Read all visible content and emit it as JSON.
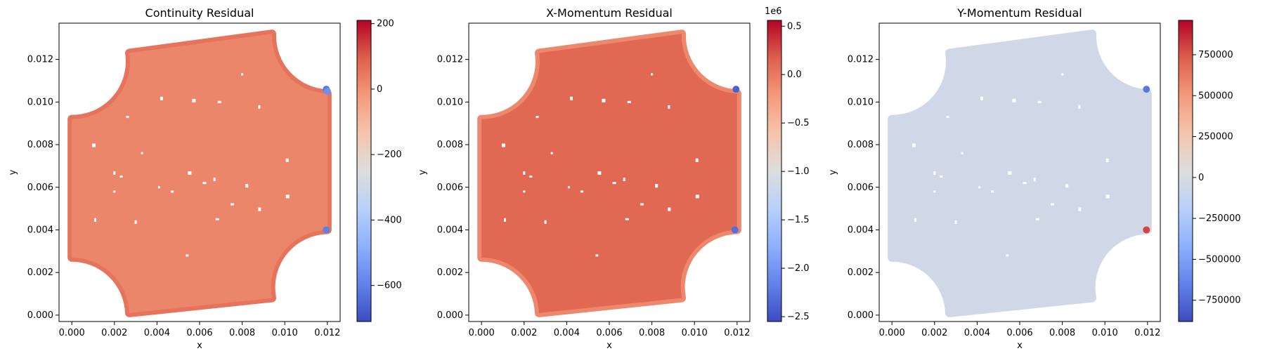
{
  "chart_data": [
    {
      "type": "heatmap",
      "title": "Continuity Residual",
      "xlabel": "x",
      "ylabel": "y",
      "xlim": [
        -0.0006,
        0.0126
      ],
      "ylim": [
        -0.0003,
        0.0137
      ],
      "xticks": [
        0.0,
        0.002,
        0.004,
        0.006,
        0.008,
        0.01,
        0.012
      ],
      "xtick_labels": [
        "0.000",
        "0.002",
        "0.004",
        "0.006",
        "0.008",
        "0.010",
        "0.012"
      ],
      "yticks": [
        0.0,
        0.002,
        0.004,
        0.006,
        0.008,
        0.01,
        0.012
      ],
      "ytick_labels": [
        "0.000",
        "0.002",
        "0.004",
        "0.006",
        "0.008",
        "0.010",
        "0.012"
      ],
      "colormap": "coolwarm",
      "color_range": [
        -710,
        210
      ],
      "colorbar_ticks": [
        200,
        0,
        -200,
        -400,
        -600
      ],
      "colorbar_tick_labels": [
        "200",
        "0",
        "−200",
        "−400",
        "−600"
      ],
      "colorbar_offset_label": "",
      "field_value": 20,
      "edge_value": 55,
      "hotspots": [
        {
          "x": 0.01195,
          "y": 0.0106,
          "value": -620
        },
        {
          "x": 0.012,
          "y": 0.0105,
          "value": -560
        },
        {
          "x": 0.01195,
          "y": 0.004,
          "value": -600
        }
      ]
    },
    {
      "type": "heatmap",
      "title": "X-Momentum Residual",
      "xlabel": "x",
      "ylabel": "y",
      "xlim": [
        -0.0006,
        0.0126
      ],
      "ylim": [
        -0.0003,
        0.0137
      ],
      "xticks": [
        0.0,
        0.002,
        0.004,
        0.006,
        0.008,
        0.01,
        0.012
      ],
      "xtick_labels": [
        "0.000",
        "0.002",
        "0.004",
        "0.006",
        "0.008",
        "0.010",
        "0.012"
      ],
      "yticks": [
        0.0,
        0.002,
        0.004,
        0.006,
        0.008,
        0.01,
        0.012
      ],
      "ytick_labels": [
        "0.000",
        "0.002",
        "0.004",
        "0.006",
        "0.008",
        "0.010",
        "0.012"
      ],
      "colormap": "coolwarm",
      "color_range": [
        -2550000,
        560000
      ],
      "colorbar_ticks": [
        500000,
        0,
        -500000,
        -1000000,
        -1500000,
        -2000000,
        -2500000
      ],
      "colorbar_tick_labels": [
        "0.5",
        "0.0",
        "−0.5",
        "−1.0",
        "−1.5",
        "−2.0",
        "−2.5"
      ],
      "colorbar_offset_label": "1e6",
      "field_value": 120000,
      "edge_value": -100000,
      "hotspots": [
        {
          "x": 0.01195,
          "y": 0.0106,
          "value": -2400000
        },
        {
          "x": 0.0119,
          "y": 0.004,
          "value": -2300000
        }
      ]
    },
    {
      "type": "heatmap",
      "title": "Y-Momentum Residual",
      "xlabel": "x",
      "ylabel": "y",
      "xlim": [
        -0.0006,
        0.0126
      ],
      "ylim": [
        -0.0003,
        0.0137
      ],
      "xticks": [
        0.0,
        0.002,
        0.004,
        0.006,
        0.008,
        0.01,
        0.012
      ],
      "xtick_labels": [
        "0.000",
        "0.002",
        "0.004",
        "0.006",
        "0.008",
        "0.010",
        "0.012"
      ],
      "yticks": [
        0.0,
        0.002,
        0.004,
        0.006,
        0.008,
        0.01,
        0.012
      ],
      "ytick_labels": [
        "0.000",
        "0.002",
        "0.004",
        "0.006",
        "0.008",
        "0.010",
        "0.012"
      ],
      "colormap": "coolwarm",
      "color_range": [
        -880000,
        960000
      ],
      "colorbar_ticks": [
        750000,
        500000,
        250000,
        0,
        -250000,
        -500000,
        -750000
      ],
      "colorbar_tick_labels": [
        "750000",
        "500000",
        "250000",
        "0",
        "−250000",
        "−500000",
        "−750000"
      ],
      "colorbar_offset_label": "",
      "field_value": -40000,
      "edge_value": -40000,
      "hotspots": [
        {
          "x": 0.01195,
          "y": 0.0106,
          "value": -700000
        },
        {
          "x": 0.01195,
          "y": 0.004,
          "value": 800000
        }
      ]
    }
  ]
}
